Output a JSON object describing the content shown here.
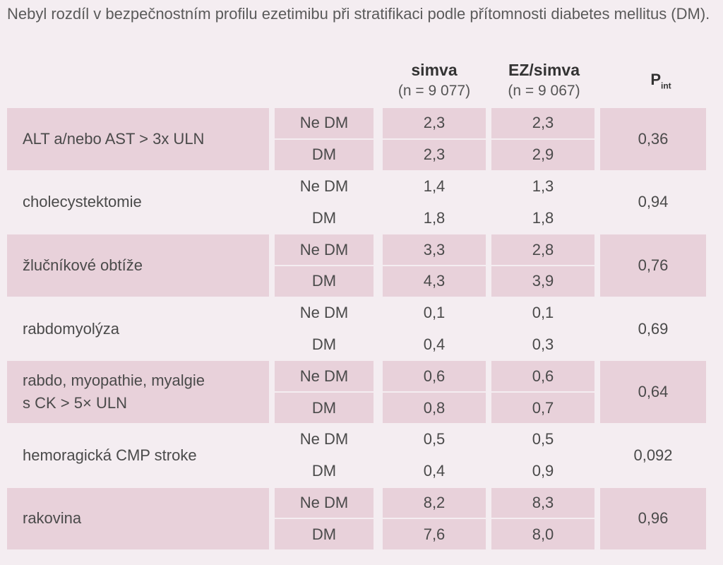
{
  "caption": "Nebyl rozdíl v bezpečnostním profilu ezetimibu při stratifikaci podle přítomnosti diabetes mellitus (DM).",
  "columns": {
    "simva": {
      "name": "simva",
      "n": "(n = 9 077)"
    },
    "ezsimva": {
      "name": "EZ/simva",
      "n": "(n = 9 067)"
    },
    "p": {
      "main": "P",
      "sub": "int"
    }
  },
  "rows": [
    {
      "label": "ALT a/nebo AST > 3x ULN",
      "shaded": true,
      "p": "0,36",
      "sub": [
        {
          "group": "Ne DM",
          "simva": "2,3",
          "ez": "2,3"
        },
        {
          "group": "DM",
          "simva": "2,3",
          "ez": "2,9"
        }
      ]
    },
    {
      "label": "cholecystektomie",
      "shaded": false,
      "p": "0,94",
      "sub": [
        {
          "group": "Ne DM",
          "simva": "1,4",
          "ez": "1,3"
        },
        {
          "group": "DM",
          "simva": "1,8",
          "ez": "1,8"
        }
      ]
    },
    {
      "label": "žlučníkové obtíže",
      "shaded": true,
      "p": "0,76",
      "sub": [
        {
          "group": "Ne DM",
          "simva": "3,3",
          "ez": "2,8"
        },
        {
          "group": "DM",
          "simva": "4,3",
          "ez": "3,9"
        }
      ]
    },
    {
      "label": "rabdomyolýza",
      "shaded": false,
      "p": "0,69",
      "sub": [
        {
          "group": "Ne DM",
          "simva": "0,1",
          "ez": "0,1"
        },
        {
          "group": "DM",
          "simva": "0,4",
          "ez": "0,3"
        }
      ]
    },
    {
      "label": "rabdo, myopathie, myalgie\ns CK > 5× ULN",
      "shaded": true,
      "p": "0,64",
      "sub": [
        {
          "group": "Ne DM",
          "simva": "0,6",
          "ez": "0,6"
        },
        {
          "group": "DM",
          "simva": "0,8",
          "ez": "0,7"
        }
      ]
    },
    {
      "label": "hemoragická CMP stroke",
      "shaded": false,
      "p": "0,092",
      "sub": [
        {
          "group": "Ne DM",
          "simva": "0,5",
          "ez": "0,5"
        },
        {
          "group": "DM",
          "simva": "0,4",
          "ez": "0,9"
        }
      ]
    },
    {
      "label": "rakovina",
      "shaded": true,
      "p": "0,96",
      "sub": [
        {
          "group": "Ne DM",
          "simva": "8,2",
          "ez": "8,3"
        },
        {
          "group": "DM",
          "simva": "7,6",
          "ez": "8,0"
        }
      ]
    }
  ]
}
